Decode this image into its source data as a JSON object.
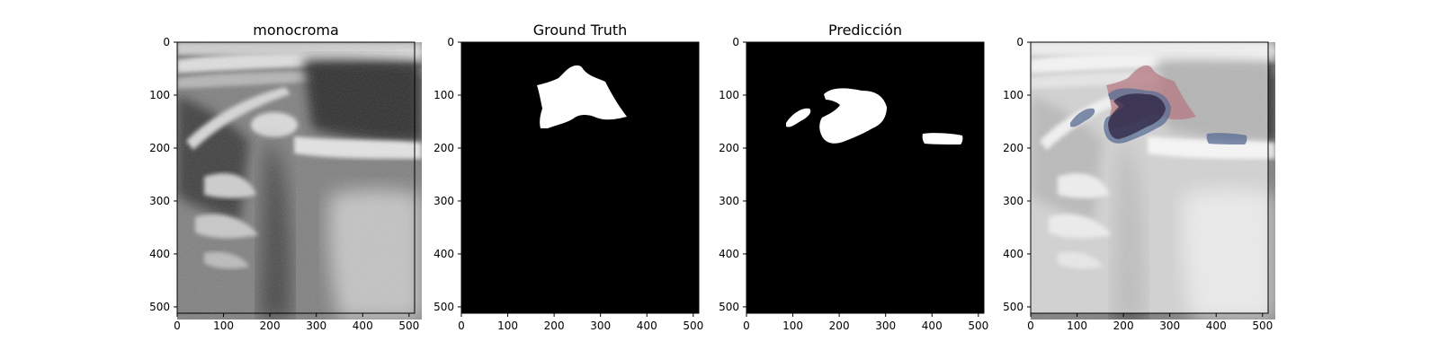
{
  "panels": [
    {
      "title": "monocroma",
      "kind": "ultrasound"
    },
    {
      "title": "Ground Truth",
      "kind": "mask-gt"
    },
    {
      "title": "Predicción",
      "kind": "mask-pred"
    },
    {
      "title": "",
      "kind": "overlay"
    }
  ],
  "axes": {
    "x_ticks": [
      "0",
      "100",
      "200",
      "300",
      "400",
      "500"
    ],
    "y_ticks": [
      "0",
      "100",
      "200",
      "300",
      "400",
      "500"
    ],
    "x_tick_values": [
      0,
      100,
      200,
      300,
      400,
      500
    ],
    "y_tick_values": [
      0,
      100,
      200,
      300,
      400,
      500
    ],
    "extent": [
      0,
      512
    ]
  },
  "colors": {
    "ground_truth_overlay": "#b47a82",
    "prediction_overlay": "#5c6f95",
    "mask_foreground": "#ffffff",
    "mask_background": "#000000"
  }
}
